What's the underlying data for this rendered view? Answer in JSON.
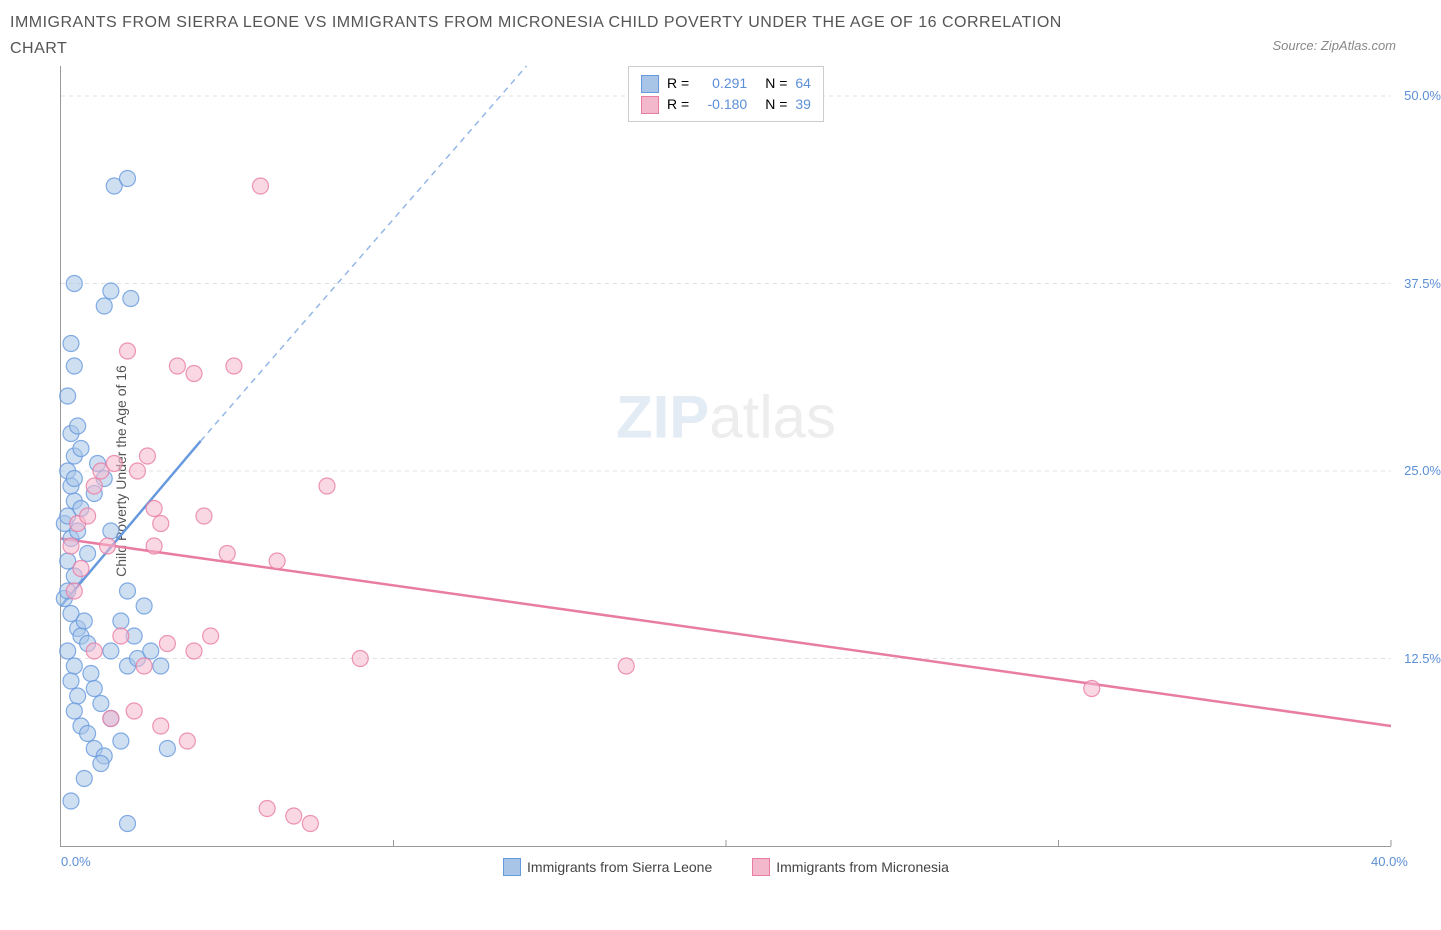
{
  "title": "IMMIGRANTS FROM SIERRA LEONE VS IMMIGRANTS FROM MICRONESIA CHILD POVERTY UNDER THE AGE OF 16 CORRELATION CHART",
  "source": "Source: ZipAtlas.com",
  "ylabel": "Child Poverty Under the Age of 16",
  "watermark_a": "ZIP",
  "watermark_b": "atlas",
  "chart": {
    "type": "scatter",
    "xlim": [
      0,
      40
    ],
    "ylim": [
      0,
      52
    ],
    "x_ticks": [
      0,
      10,
      20,
      30,
      40
    ],
    "x_tick_labels": [
      "0.0%",
      "",
      "",
      "",
      "40.0%"
    ],
    "y_ticks": [
      12.5,
      25,
      37.5,
      50
    ],
    "y_tick_labels": [
      "12.5%",
      "25.0%",
      "37.5%",
      "50.0%"
    ],
    "grid_color": "#e0e0e0",
    "background_color": "#ffffff",
    "marker_radius": 8,
    "marker_opacity": 0.55,
    "series": [
      {
        "name": "Immigrants from Sierra Leone",
        "color": "#6699dd",
        "fill": "#a8c5e8",
        "R": "0.291",
        "N": "64",
        "trend": {
          "x1": 0,
          "y1": 16,
          "x2": 4.2,
          "y2": 27,
          "dash_to_x": 14,
          "dash_to_y": 52
        },
        "points": [
          [
            0.1,
            21.5
          ],
          [
            0.2,
            22
          ],
          [
            0.3,
            20.5
          ],
          [
            0.2,
            19
          ],
          [
            0.5,
            21
          ],
          [
            0.4,
            23
          ],
          [
            0.3,
            24
          ],
          [
            0.6,
            22.5
          ],
          [
            0.1,
            16.5
          ],
          [
            0.2,
            17
          ],
          [
            0.4,
            18
          ],
          [
            0.3,
            15.5
          ],
          [
            0.5,
            14.5
          ],
          [
            0.2,
            13
          ],
          [
            0.6,
            14
          ],
          [
            0.4,
            12
          ],
          [
            0.7,
            15
          ],
          [
            0.3,
            11
          ],
          [
            0.8,
            13.5
          ],
          [
            0.5,
            10
          ],
          [
            0.9,
            11.5
          ],
          [
            0.4,
            9
          ],
          [
            1.0,
            10.5
          ],
          [
            0.6,
            8
          ],
          [
            1.2,
            9.5
          ],
          [
            0.8,
            7.5
          ],
          [
            1.5,
            8.5
          ],
          [
            1.0,
            6.5
          ],
          [
            1.8,
            7
          ],
          [
            1.3,
            6
          ],
          [
            2.0,
            12
          ],
          [
            1.5,
            13
          ],
          [
            2.2,
            14
          ],
          [
            1.8,
            15
          ],
          [
            2.5,
            16
          ],
          [
            2.0,
            17
          ],
          [
            0.2,
            25
          ],
          [
            0.4,
            26
          ],
          [
            0.3,
            27.5
          ],
          [
            0.6,
            26.5
          ],
          [
            0.5,
            28
          ],
          [
            1.1,
            25.5
          ],
          [
            1.3,
            24.5
          ],
          [
            1.0,
            23.5
          ],
          [
            0.2,
            30
          ],
          [
            0.4,
            32
          ],
          [
            0.3,
            33.5
          ],
          [
            1.3,
            36
          ],
          [
            1.5,
            37
          ],
          [
            2.1,
            36.5
          ],
          [
            0.4,
            37.5
          ],
          [
            1.6,
            44
          ],
          [
            2.0,
            44.5
          ],
          [
            2.3,
            12.5
          ],
          [
            2.7,
            13
          ],
          [
            3.0,
            12
          ],
          [
            3.2,
            6.5
          ],
          [
            0.3,
            3
          ],
          [
            0.7,
            4.5
          ],
          [
            1.2,
            5.5
          ],
          [
            2.0,
            1.5
          ],
          [
            0.4,
            24.5
          ],
          [
            1.5,
            21
          ],
          [
            0.8,
            19.5
          ]
        ]
      },
      {
        "name": "Immigrants from Micronesia",
        "color": "#e87ca3",
        "fill": "#f4b8cd",
        "R": "-0.180",
        "N": "39",
        "trend": {
          "x1": 0,
          "y1": 20.5,
          "x2": 40,
          "y2": 8
        },
        "points": [
          [
            0.3,
            20
          ],
          [
            0.5,
            21.5
          ],
          [
            0.8,
            22
          ],
          [
            1.0,
            24
          ],
          [
            1.2,
            25
          ],
          [
            1.6,
            25.5
          ],
          [
            2.3,
            25
          ],
          [
            2.6,
            26
          ],
          [
            2.8,
            22.5
          ],
          [
            3.0,
            21.5
          ],
          [
            3.5,
            32
          ],
          [
            4.0,
            31.5
          ],
          [
            4.3,
            22
          ],
          [
            5.2,
            32
          ],
          [
            4.5,
            14
          ],
          [
            5.0,
            19.5
          ],
          [
            6.5,
            19
          ],
          [
            8.0,
            24
          ],
          [
            9.0,
            12.5
          ],
          [
            17.0,
            12
          ],
          [
            31.0,
            10.5
          ],
          [
            1.5,
            8.5
          ],
          [
            2.2,
            9
          ],
          [
            3.0,
            8
          ],
          [
            3.8,
            7
          ],
          [
            1.0,
            13
          ],
          [
            1.8,
            14
          ],
          [
            2.5,
            12
          ],
          [
            3.2,
            13.5
          ],
          [
            0.4,
            17
          ],
          [
            0.6,
            18.5
          ],
          [
            1.4,
            20
          ],
          [
            6.0,
            44
          ],
          [
            7.0,
            2
          ],
          [
            7.5,
            1.5
          ],
          [
            6.2,
            2.5
          ],
          [
            2.0,
            33
          ],
          [
            2.8,
            20
          ],
          [
            4.0,
            13
          ]
        ]
      }
    ]
  },
  "legend": {
    "series1": "Immigrants from Sierra Leone",
    "series2": "Immigrants from Micronesia"
  },
  "stats": {
    "r_label": "R =",
    "n_label": "N ="
  }
}
